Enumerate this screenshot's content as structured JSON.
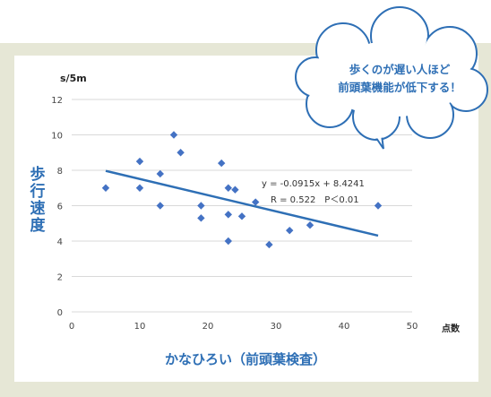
{
  "callout": {
    "line1": "歩くのが遅い人ほど",
    "line2": "前頭葉機能が低下する！"
  },
  "y_axis_title": "歩行速度",
  "x_axis_title": "かなひろい（前頭葉検査）",
  "y_unit": "s/5m",
  "x_unit": "点数",
  "colors": {
    "accent": "#2e6fb5",
    "marker": "#4472c4",
    "frame": "#e6e7d6"
  },
  "chart_data": {
    "type": "scatter",
    "xlim": [
      0,
      50
    ],
    "ylim": [
      0,
      12
    ],
    "xticks": [
      0,
      10,
      20,
      30,
      40,
      50
    ],
    "yticks": [
      0,
      2,
      4,
      6,
      8,
      10,
      12
    ],
    "grid": true,
    "points": [
      {
        "x": 5,
        "y": 7.0
      },
      {
        "x": 10,
        "y": 8.5
      },
      {
        "x": 10,
        "y": 7.0
      },
      {
        "x": 13,
        "y": 7.8
      },
      {
        "x": 13,
        "y": 6.0
      },
      {
        "x": 15,
        "y": 10.0
      },
      {
        "x": 16,
        "y": 9.0
      },
      {
        "x": 19,
        "y": 6.0
      },
      {
        "x": 19,
        "y": 5.3
      },
      {
        "x": 22,
        "y": 8.4
      },
      {
        "x": 23,
        "y": 7.0
      },
      {
        "x": 23,
        "y": 5.5
      },
      {
        "x": 23,
        "y": 4.0
      },
      {
        "x": 24,
        "y": 6.9
      },
      {
        "x": 25,
        "y": 5.4
      },
      {
        "x": 27,
        "y": 6.2
      },
      {
        "x": 29,
        "y": 3.8
      },
      {
        "x": 32,
        "y": 4.6
      },
      {
        "x": 35,
        "y": 4.9
      },
      {
        "x": 45,
        "y": 6.0
      }
    ],
    "trendline": {
      "slope": -0.0915,
      "intercept": 8.4241,
      "x_range": [
        5,
        45
      ]
    },
    "annotation_line1": "y = -0.0915x + 8.4241",
    "annotation_line2": "R = 0.522　P＜0.01"
  }
}
